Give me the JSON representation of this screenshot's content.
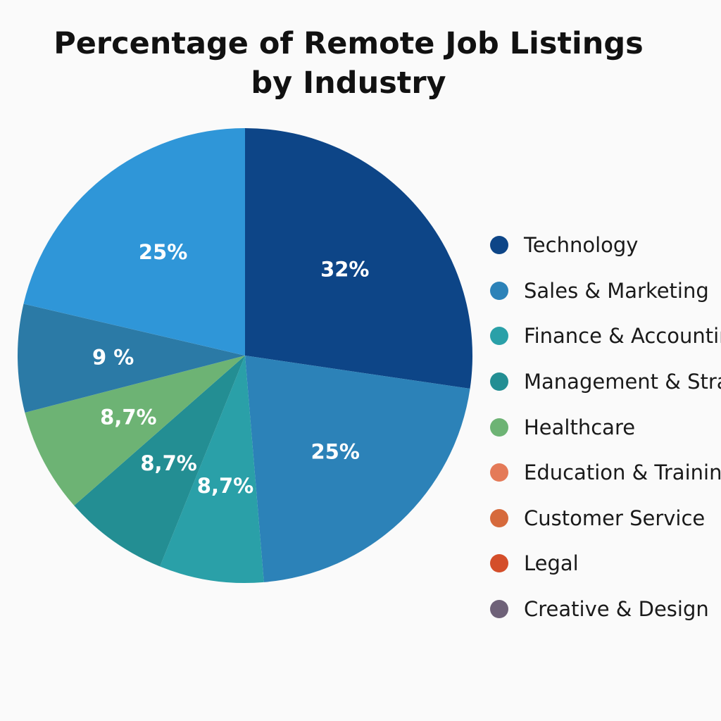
{
  "chart_data": {
    "type": "pie",
    "title_lines": [
      "Percentage of Remote Job Listings",
      "by Industry"
    ],
    "slices": [
      {
        "name": "Technology",
        "value": 32,
        "label": "32%",
        "color": "#0d4587"
      },
      {
        "name": "Sales & Marketing",
        "value": 25,
        "label": "25%",
        "color": "#2c82b8"
      },
      {
        "name": "Finance & Accounting",
        "value": 8.7,
        "label": "8,7%",
        "color": "#2aa0a8"
      },
      {
        "name": "Management & Strategy",
        "value": 8.7,
        "label": "8,7%",
        "color": "#238e93"
      },
      {
        "name": "Healthcare",
        "value": 8.7,
        "label": "8,7%",
        "color": "#6db374"
      },
      {
        "name": "Education & Training",
        "value": 0,
        "label": "",
        "color": "#e47a58"
      },
      {
        "name": "Customer Service",
        "value": 0,
        "label": "",
        "color": "#d66a3c"
      },
      {
        "name": "Legal",
        "value": 0,
        "label": "",
        "color": "#d44e2a"
      },
      {
        "name": "Creative & Design",
        "value": 0,
        "label": "",
        "color": "#6e6178"
      },
      {
        "name": "",
        "value": 9,
        "label": "9 %",
        "color": "#2b7aa6"
      },
      {
        "name": "",
        "value": 25,
        "label": "25%",
        "color": "#2f96d8"
      }
    ],
    "legend_position": "right",
    "legend": [
      {
        "name": "Technology",
        "color": "#0d4587"
      },
      {
        "name": "Sales & Marketing",
        "color": "#2c82b8"
      },
      {
        "name": "Finance & Accounting",
        "color": "#2aa0a8"
      },
      {
        "name": "Management & Strategy",
        "color": "#238e93"
      },
      {
        "name": "Healthcare",
        "color": "#6db374"
      },
      {
        "name": "Education & Training",
        "color": "#e47a58"
      },
      {
        "name": "Customer Service",
        "color": "#d66a3c"
      },
      {
        "name": "Legal",
        "color": "#d44e2a"
      },
      {
        "name": "Creative & Design",
        "color": "#6e6178"
      }
    ]
  }
}
